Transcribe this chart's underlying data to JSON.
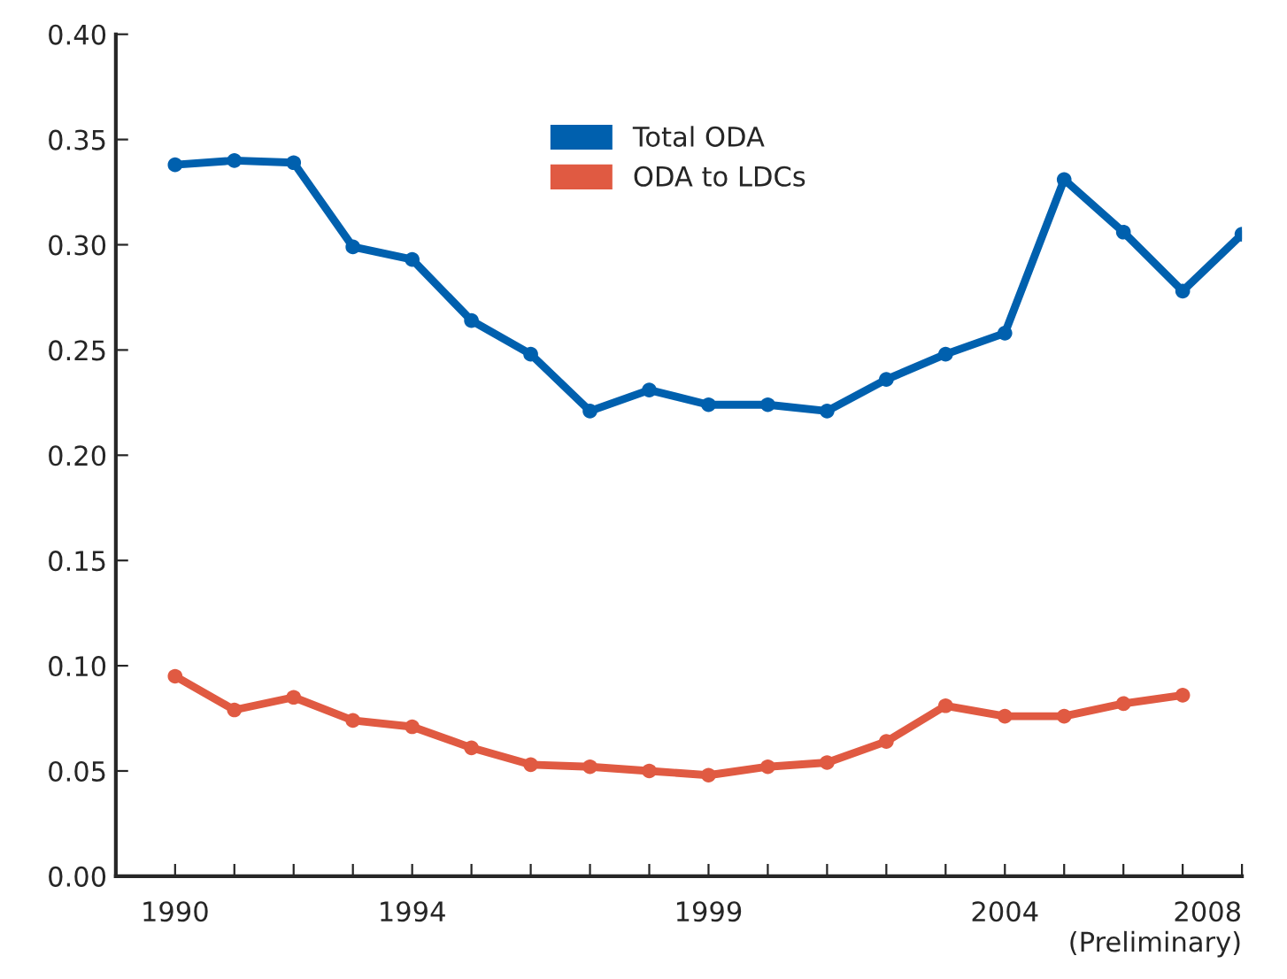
{
  "chart_data": {
    "type": "line",
    "x": [
      1990,
      1991,
      1992,
      1993,
      1994,
      1995,
      1996,
      1997,
      1998,
      1999,
      2000,
      2001,
      2002,
      2003,
      2004,
      2005,
      2006,
      2007,
      2008
    ],
    "series": [
      {
        "name": "Total ODA",
        "color": "#0060ae",
        "values": [
          0.338,
          0.34,
          0.339,
          0.299,
          0.293,
          0.264,
          0.248,
          0.221,
          0.231,
          0.224,
          0.224,
          0.221,
          0.236,
          0.248,
          0.258,
          0.331,
          0.306,
          0.278,
          0.305
        ]
      },
      {
        "name": "ODA to LDCs",
        "color": "#e05a42",
        "values": [
          0.095,
          0.079,
          0.085,
          0.074,
          0.071,
          0.061,
          0.053,
          0.052,
          0.05,
          0.048,
          0.052,
          0.054,
          0.064,
          0.081,
          0.076,
          0.076,
          0.082,
          0.086,
          null
        ]
      }
    ],
    "xlim": [
      1989,
      2008
    ],
    "xticks": [
      {
        "value": 1989,
        "label": null
      },
      {
        "value": 1990,
        "label": "1990"
      },
      {
        "value": 1991,
        "label": null
      },
      {
        "value": 1992,
        "label": null
      },
      {
        "value": 1993,
        "label": null
      },
      {
        "value": 1994,
        "label": "1994"
      },
      {
        "value": 1995,
        "label": null
      },
      {
        "value": 1996,
        "label": null
      },
      {
        "value": 1997,
        "label": null
      },
      {
        "value": 1998,
        "label": null
      },
      {
        "value": 1999,
        "label": "1999"
      },
      {
        "value": 2000,
        "label": null
      },
      {
        "value": 2001,
        "label": null
      },
      {
        "value": 2002,
        "label": null
      },
      {
        "value": 2003,
        "label": null
      },
      {
        "value": 2004,
        "label": "2004"
      },
      {
        "value": 2005,
        "label": null
      },
      {
        "value": 2006,
        "label": null
      },
      {
        "value": 2007,
        "label": null
      },
      {
        "value": 2008,
        "label": "2008\n(Preliminary)"
      }
    ],
    "ylim": [
      0,
      0.4
    ],
    "yticks": [
      {
        "value": 0,
        "label": "0.00"
      },
      {
        "value": 0.05,
        "label": "0.05"
      },
      {
        "value": 0.1,
        "label": "0.10"
      },
      {
        "value": 0.15,
        "label": "0.15"
      },
      {
        "value": 0.2,
        "label": "0.20"
      },
      {
        "value": 0.25,
        "label": "0.25"
      },
      {
        "value": 0.3,
        "label": "0.30"
      },
      {
        "value": 0.35,
        "label": "0.35"
      },
      {
        "value": 0.4,
        "label": "0.40"
      }
    ],
    "grid": false,
    "legend": "top",
    "marker": "circle",
    "line_style": "solid"
  }
}
